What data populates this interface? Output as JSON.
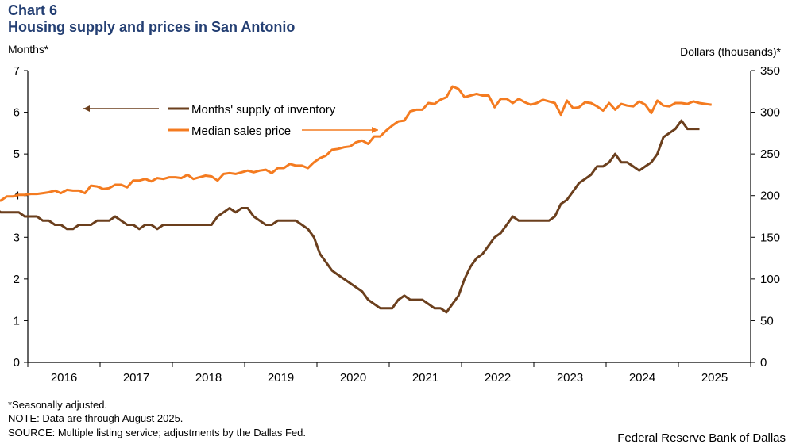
{
  "header": {
    "title": "Chart 6",
    "subtitle": "Housing supply and prices in San Antonio"
  },
  "footer": {
    "note1": "*Seasonally adjusted.",
    "note2": "NOTE: Data are through August 2025.",
    "source": "SOURCE: Multiple  listing service; adjustments by the Dallas Fed.",
    "credit": "Federal Reserve Bank of Dallas"
  },
  "colors": {
    "supply": "#6b3f1d",
    "price": "#f47b20",
    "title": "#243f73"
  },
  "chart_data": {
    "type": "line",
    "start_month": "2015-07",
    "end_month": "2025-08",
    "frequency": "monthly",
    "ylabel_left": "Months*",
    "ylabel_right": "Dollars (thousands)*",
    "ylim_left": [
      0,
      7
    ],
    "ylim_right": [
      0,
      350
    ],
    "yticks_left": [
      "0",
      "1",
      "2",
      "3",
      "4",
      "5",
      "6",
      "7"
    ],
    "yticks_right": [
      "0",
      "50",
      "100",
      "150",
      "200",
      "250",
      "300",
      "350"
    ],
    "xticks": [
      "2016",
      "2017",
      "2018",
      "2019",
      "2020",
      "2021",
      "2022",
      "2023",
      "2024",
      "2025"
    ],
    "series": [
      {
        "name": "Months' supply of inventory",
        "axis": "left",
        "values": [
          3.7,
          3.6,
          3.6,
          3.6,
          3.6,
          3.5,
          3.5,
          3.5,
          3.4,
          3.4,
          3.3,
          3.3,
          3.2,
          3.2,
          3.3,
          3.3,
          3.3,
          3.4,
          3.4,
          3.4,
          3.5,
          3.4,
          3.3,
          3.3,
          3.2,
          3.3,
          3.3,
          3.2,
          3.3,
          3.3,
          3.3,
          3.3,
          3.3,
          3.3,
          3.3,
          3.3,
          3.3,
          3.5,
          3.6,
          3.7,
          3.6,
          3.7,
          3.7,
          3.5,
          3.4,
          3.3,
          3.3,
          3.4,
          3.4,
          3.4,
          3.4,
          3.3,
          3.2,
          3.0,
          2.6,
          2.4,
          2.2,
          2.1,
          2.0,
          1.9,
          1.8,
          1.7,
          1.5,
          1.4,
          1.3,
          1.3,
          1.3,
          1.5,
          1.6,
          1.5,
          1.5,
          1.5,
          1.4,
          1.3,
          1.3,
          1.2,
          1.4,
          1.6,
          2.0,
          2.3,
          2.5,
          2.6,
          2.8,
          3.0,
          3.1,
          3.3,
          3.5,
          3.4,
          3.4,
          3.4,
          3.4,
          3.4,
          3.4,
          3.5,
          3.8,
          3.9,
          4.1,
          4.3,
          4.4,
          4.5,
          4.7,
          4.7,
          4.8,
          5.0,
          4.8,
          4.8,
          4.7,
          4.6,
          4.7,
          4.8,
          5.0,
          5.4,
          5.5,
          5.6,
          5.8,
          5.6,
          5.6,
          5.6
        ]
      },
      {
        "name": "Median sales price",
        "axis": "right",
        "values": [
          194,
          194,
          199,
          199,
          201,
          201,
          202,
          202,
          203,
          204,
          206,
          203,
          207,
          206,
          206,
          203,
          212,
          211,
          208,
          209,
          213,
          213,
          210,
          218,
          218,
          220,
          217,
          221,
          220,
          222,
          222,
          221,
          225,
          220,
          222,
          224,
          223,
          218,
          226,
          227,
          226,
          228,
          230,
          228,
          230,
          231,
          227,
          233,
          233,
          238,
          236,
          236,
          233,
          240,
          245,
          248,
          255,
          256,
          258,
          259,
          264,
          266,
          262,
          271,
          271,
          278,
          284,
          289,
          290,
          301,
          303,
          303,
          311,
          310,
          315,
          318,
          331,
          328,
          318,
          320,
          322,
          320,
          320,
          306,
          316,
          316,
          311,
          316,
          312,
          309,
          311,
          315,
          313,
          311,
          297,
          314,
          305,
          306,
          312,
          311,
          307,
          302,
          311,
          303,
          310,
          308,
          307,
          313,
          309,
          299,
          314,
          308,
          307,
          311,
          311,
          310,
          313,
          311,
          310,
          309
        ]
      }
    ]
  }
}
